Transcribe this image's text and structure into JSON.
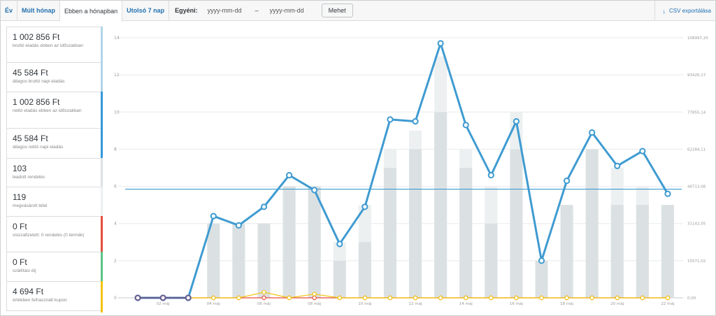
{
  "toolbar": {
    "tabs": [
      "Év",
      "Múlt hónap",
      "Ebben a hónapban",
      "Utolsó 7 nap"
    ],
    "custom_label": "Egyéni:",
    "date_from_placeholder": "yyyy-mm-dd",
    "date_separator": "–",
    "date_to_placeholder": "yyyy-mm-dd",
    "go_button": "Mehet",
    "csv_label": "CSV exportálása"
  },
  "legend": [
    {
      "value": "1 002 856 Ft",
      "label": "bruttó eladás ebben az időszakban",
      "color": "#b1d4ea"
    },
    {
      "value": "45 584 Ft",
      "label": "átlagos bruttó napi eladás",
      "color": "#b1d4ea"
    },
    {
      "value": "1 002 856 Ft",
      "label": "nettó eladás ebben az időszakban",
      "color": "#3498db"
    },
    {
      "value": "45 584 Ft",
      "label": "átlagos nettó napi eladás",
      "color": "#3498db"
    },
    {
      "value": "103",
      "label": "leadott rendelés",
      "color": "#dbe1e3"
    },
    {
      "value": "119",
      "label": "megvásárolt tétel",
      "color": "#ecf0f1"
    },
    {
      "value": "0 Ft",
      "label": "visszafizetett: 0 rendelés (0 termék)",
      "color": "#e74c3c"
    },
    {
      "value": "0 Ft",
      "label": "szállítási díj",
      "color": "#5cc488"
    },
    {
      "value": "4 694 Ft",
      "label": "értékben felhasznált kupon",
      "color": "#f1c40f"
    }
  ],
  "chart_data": {
    "type": "bar+line",
    "x_tick_labels": [
      "02 máj",
      "04 máj",
      "06 máj",
      "08 máj",
      "10 máj",
      "12 máj",
      "14 máj",
      "16 máj",
      "18 máj",
      "20 máj",
      "22 máj"
    ],
    "days": 22,
    "left_axis": {
      "ticks": [
        0,
        2,
        4,
        6,
        8,
        10,
        12,
        14
      ],
      "ylim": [
        0,
        14
      ]
    },
    "right_axis": {
      "tick_labels": [
        "0,00",
        "15571,02",
        "31142,05",
        "46713,08",
        "62284,11",
        "77855,14",
        "93426,17",
        "108997,20"
      ]
    },
    "series": [
      {
        "name": "leadott rendelés",
        "kind": "bar",
        "color": "#dbe1e3",
        "values": [
          0,
          0,
          0,
          4,
          4,
          4,
          6,
          6,
          2,
          3,
          7,
          8,
          10,
          7,
          4,
          8,
          2,
          5,
          8,
          5,
          5,
          5
        ]
      },
      {
        "name": "megvásárolt tétel",
        "kind": "bar",
        "color": "#ecf0f1",
        "values": [
          0,
          0,
          0,
          4,
          4,
          4,
          6,
          6,
          3,
          5,
          8,
          9,
          13,
          8,
          6,
          10,
          2,
          5,
          8,
          7,
          6,
          5
        ]
      },
      {
        "name": "bruttó eladás",
        "kind": "line",
        "color": "#3f9bd1",
        "values": [
          0,
          0,
          0,
          4.4,
          3.9,
          4.9,
          6.6,
          5.8,
          2.9,
          4.9,
          9.6,
          9.5,
          13.7,
          9.3,
          6.6,
          9.5,
          2.0,
          6.3,
          8.9,
          7.1,
          7.9,
          5.6
        ]
      },
      {
        "name": "kupon",
        "kind": "line",
        "color": "#f1c40f",
        "values": [
          0,
          0,
          0,
          0,
          0,
          0.3,
          0,
          0.2,
          0,
          0,
          0,
          0,
          0,
          0,
          0,
          0,
          0,
          0,
          0,
          0,
          0,
          0
        ]
      },
      {
        "name": "visszafizetés",
        "kind": "line",
        "color": "#e74c3c",
        "values": [
          0,
          0,
          0,
          0,
          0,
          0,
          0,
          0,
          0,
          0,
          0,
          0,
          0,
          0,
          0,
          0,
          0,
          0,
          0,
          0,
          0,
          0
        ]
      }
    ],
    "average_line": {
      "value": 5.85,
      "color": "#3f9bd1"
    },
    "grid": true
  }
}
